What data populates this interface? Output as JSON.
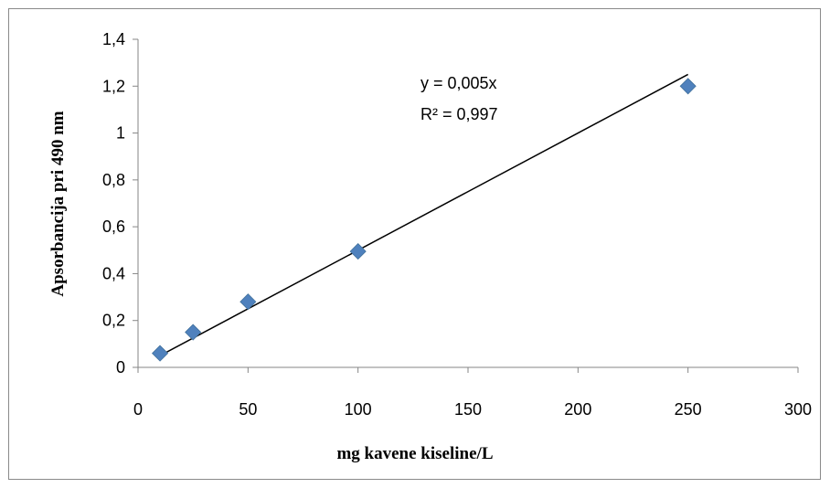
{
  "chart_data": {
    "type": "scatter",
    "title": "",
    "xlabel": "mg kavene kiseline/L",
    "ylabel": "Apsorbancija pri 490 nm",
    "xlim": [
      0,
      300
    ],
    "ylim": [
      0,
      1.4
    ],
    "x_ticks": [
      "0",
      "50",
      "100",
      "150",
      "200",
      "250",
      "300"
    ],
    "y_ticks": [
      "0",
      "0,2",
      "0,4",
      "0,6",
      "0,8",
      "1",
      "1,2",
      "1,4"
    ],
    "grid": false,
    "legend": "none",
    "series": [
      {
        "x": [
          10,
          25,
          50,
          100,
          250
        ],
        "y": [
          0.06,
          0.15,
          0.28,
          0.495,
          1.2
        ],
        "marker": "diamond",
        "color": "#4f81bd"
      }
    ],
    "trendline": {
      "slope": 0.005,
      "intercept": 0,
      "x_range": [
        10,
        250
      ],
      "color": "#000000"
    },
    "annotations": {
      "equation": "y = 0,005x",
      "r_squared": "R² = 0,997"
    }
  }
}
